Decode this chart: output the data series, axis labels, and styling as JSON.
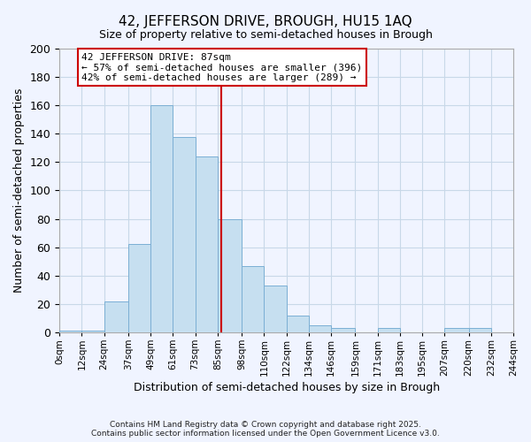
{
  "title": "42, JEFFERSON DRIVE, BROUGH, HU15 1AQ",
  "subtitle": "Size of property relative to semi-detached houses in Brough",
  "xlabel": "Distribution of semi-detached houses by size in Brough",
  "ylabel": "Number of semi-detached properties",
  "bin_edges": [
    0,
    12,
    24,
    37,
    49,
    61,
    73,
    85,
    98,
    110,
    122,
    134,
    146,
    159,
    171,
    183,
    195,
    207,
    220,
    232,
    244
  ],
  "bin_labels": [
    "0sqm",
    "12sqm",
    "24sqm",
    "37sqm",
    "49sqm",
    "61sqm",
    "73sqm",
    "85sqm",
    "98sqm",
    "110sqm",
    "122sqm",
    "134sqm",
    "146sqm",
    "159sqm",
    "171sqm",
    "183sqm",
    "195sqm",
    "207sqm",
    "220sqm",
    "232sqm",
    "244sqm"
  ],
  "counts": [
    1,
    1,
    22,
    62,
    160,
    138,
    124,
    80,
    47,
    33,
    12,
    5,
    3,
    0,
    3,
    0,
    0,
    3,
    3,
    0
  ],
  "bar_color": "#c6dff0",
  "bar_edge_color": "#7bafd4",
  "property_value": 87,
  "vline_color": "#cc0000",
  "annotation_title": "42 JEFFERSON DRIVE: 87sqm",
  "annotation_line1": "← 57% of semi-detached houses are smaller (396)",
  "annotation_line2": "42% of semi-detached houses are larger (289) →",
  "ylim": [
    0,
    200
  ],
  "yticks": [
    0,
    20,
    40,
    60,
    80,
    100,
    120,
    140,
    160,
    180,
    200
  ],
  "xlim": [
    0,
    244
  ],
  "background_color": "#f0f4ff",
  "grid_color": "#c8d8e8",
  "footer_line1": "Contains HM Land Registry data © Crown copyright and database right 2025.",
  "footer_line2": "Contains public sector information licensed under the Open Government Licence v3.0."
}
